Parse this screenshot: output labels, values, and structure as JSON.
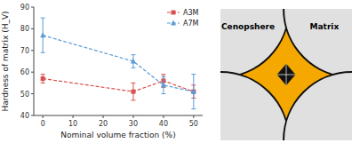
{
  "chart_data": [
    {
      "type": "line",
      "x": [
        0,
        30,
        40,
        50
      ],
      "series": [
        {
          "name": "A3M",
          "color": "#d94f4f",
          "marker": "square",
          "line_style": "dashed",
          "values": [
            57,
            51,
            56,
            51
          ],
          "errors": [
            2,
            4,
            3,
            3
          ]
        },
        {
          "name": "A7M",
          "color": "#5b9bd5",
          "marker": "triangle",
          "line_style": "dashed",
          "values": [
            77,
            65,
            54,
            51
          ],
          "errors": [
            8,
            3,
            4,
            8
          ]
        }
      ],
      "xlim": [
        -3,
        53
      ],
      "ylim": [
        40,
        90
      ],
      "xticks": [
        0,
        10,
        20,
        30,
        40,
        50
      ],
      "yticks": [
        40,
        50,
        60,
        70,
        80,
        90
      ],
      "x_label": "Nominal volume fraction (%)",
      "y_label": "Hardness of matrix (H_V)",
      "legend": "upper right",
      "grid": false
    },
    {
      "type": "diagram",
      "annotations": [
        "Cenopshere",
        "Matrix"
      ],
      "colors": [
        "#e0e0e0",
        "#f5a800",
        "#111111"
      ]
    }
  ]
}
